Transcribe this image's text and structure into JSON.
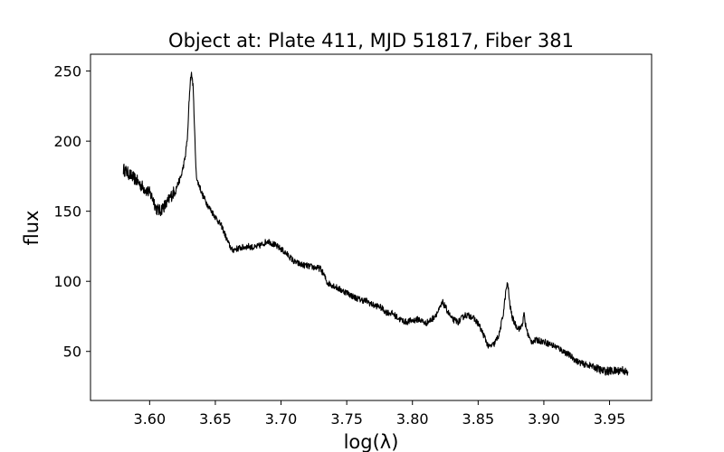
{
  "chart_data": {
    "type": "line",
    "title": "Object at: Plate 411, MJD 51817, Fiber 381",
    "xlabel": "log(λ)",
    "ylabel": "flux",
    "xlim": [
      3.555,
      3.982
    ],
    "ylim": [
      15,
      262
    ],
    "xticks": [
      {
        "value": 3.6,
        "label": "3.60"
      },
      {
        "value": 3.65,
        "label": "3.65"
      },
      {
        "value": 3.7,
        "label": "3.70"
      },
      {
        "value": 3.75,
        "label": "3.75"
      },
      {
        "value": 3.8,
        "label": "3.80"
      },
      {
        "value": 3.85,
        "label": "3.85"
      },
      {
        "value": 3.9,
        "label": "3.90"
      },
      {
        "value": 3.95,
        "label": "3.95"
      }
    ],
    "yticks": [
      {
        "value": 50,
        "label": "50"
      },
      {
        "value": 100,
        "label": "100"
      },
      {
        "value": 150,
        "label": "150"
      },
      {
        "value": 200,
        "label": "200"
      },
      {
        "value": 250,
        "label": "250"
      }
    ],
    "grid": false,
    "line_color": "#000000",
    "series": [
      {
        "x": [
          3.58,
          3.585,
          3.59,
          3.595,
          3.6,
          3.603,
          3.605,
          3.608,
          3.61,
          3.613,
          3.615,
          3.62,
          3.624,
          3.627,
          3.629,
          3.63,
          3.631,
          3.632,
          3.633,
          3.634,
          3.635,
          3.636,
          3.638,
          3.64,
          3.645,
          3.65,
          3.655,
          3.66,
          3.663,
          3.665,
          3.67,
          3.675,
          3.68,
          3.685,
          3.69,
          3.695,
          3.7,
          3.705,
          3.71,
          3.715,
          3.72,
          3.725,
          3.73,
          3.733,
          3.735,
          3.74,
          3.745,
          3.75,
          3.755,
          3.76,
          3.765,
          3.77,
          3.775,
          3.78,
          3.785,
          3.79,
          3.795,
          3.8,
          3.805,
          3.81,
          3.815,
          3.82,
          3.823,
          3.826,
          3.83,
          3.835,
          3.84,
          3.845,
          3.85,
          3.855,
          3.858,
          3.862,
          3.866,
          3.869,
          3.871,
          3.872,
          3.873,
          3.874,
          3.876,
          3.879,
          3.882,
          3.884,
          3.885,
          3.886,
          3.888,
          3.89,
          3.895,
          3.9,
          3.905,
          3.91,
          3.915,
          3.92,
          3.925,
          3.93,
          3.935,
          3.94,
          3.945,
          3.95,
          3.955,
          3.96,
          3.964
        ],
        "y": [
          180,
          176,
          172,
          167,
          163,
          158,
          152,
          150,
          153,
          155,
          159,
          166,
          175,
          188,
          205,
          228,
          244,
          248,
          240,
          215,
          185,
          172,
          168,
          162,
          153,
          146,
          139,
          127,
          122,
          123,
          124,
          125,
          124,
          126,
          129,
          126,
          123,
          119,
          114,
          112,
          111,
          110,
          109,
          104,
          99,
          97,
          94,
          92,
          89,
          87,
          86,
          83,
          82,
          78,
          77,
          73,
          71,
          72,
          73,
          70,
          73,
          79,
          85,
          80,
          73,
          71,
          76,
          75,
          70,
          60,
          53,
          55,
          62,
          76,
          92,
          98,
          95,
          84,
          74,
          68,
          66,
          71,
          77,
          69,
          62,
          57,
          58,
          57,
          55,
          53,
          50,
          47,
          43,
          41,
          40,
          38,
          36,
          36,
          36,
          37,
          34
        ]
      }
    ]
  }
}
